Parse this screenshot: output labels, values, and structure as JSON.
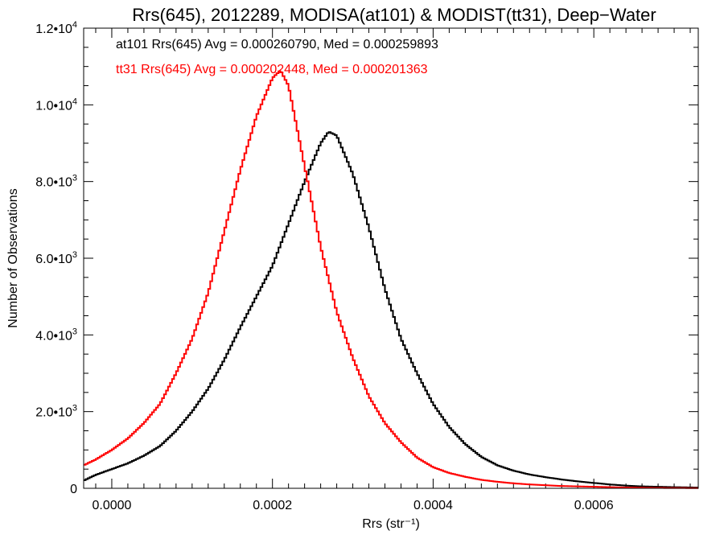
{
  "chart_data": {
    "type": "line",
    "title": "Rrs(645), 2012289, MODISA(at101) & MODIST(tt31), Deep−Water",
    "xlabel": "Rrs (str⁻¹)",
    "ylabel": "Number of Observations",
    "xlim": [
      -3.5e-05,
      0.00073
    ],
    "ylim": [
      0,
      12000
    ],
    "x_ticks": [
      {
        "value": 0.0,
        "label": "0.0000"
      },
      {
        "value": 0.0002,
        "label": "0.0002"
      },
      {
        "value": 0.0004,
        "label": "0.0004"
      },
      {
        "value": 0.0006,
        "label": "0.0006"
      }
    ],
    "y_ticks": [
      {
        "value": 0,
        "label": "0"
      },
      {
        "value": 2000,
        "label": "2.0•10",
        "exp": "3"
      },
      {
        "value": 4000,
        "label": "4.0•10",
        "exp": "3"
      },
      {
        "value": 6000,
        "label": "6.0•10",
        "exp": "3"
      },
      {
        "value": 8000,
        "label": "8.0•10",
        "exp": "3"
      },
      {
        "value": 10000,
        "label": "1.0•10",
        "exp": "4"
      },
      {
        "value": 12000,
        "label": "1.2•10",
        "exp": "4"
      }
    ],
    "annotations": [
      "at101 Rrs(645) Avg = 0.000260790, Med = 0.000259893",
      "tt31 Rrs(645) Avg = 0.000202448, Med = 0.000201363"
    ],
    "grid": false,
    "series": [
      {
        "name": "at101",
        "color": "#000000",
        "x": [
          -3.5e-05,
          -2e-05,
          0,
          2e-05,
          4e-05,
          6e-05,
          8e-05,
          0.0001,
          0.00012,
          0.00014,
          0.00016,
          0.00018,
          0.0002,
          0.00022,
          0.00024,
          0.00026,
          0.00027,
          0.00028,
          0.0003,
          0.00032,
          0.00034,
          0.00036,
          0.00038,
          0.0004,
          0.00042,
          0.00044,
          0.00046,
          0.00048,
          0.0005,
          0.00052,
          0.00054,
          0.00056,
          0.00058,
          0.0006,
          0.00062,
          0.00064,
          0.00066,
          0.00068,
          0.0007,
          0.00073
        ],
        "y": [
          200,
          350,
          500,
          650,
          850,
          1100,
          1500,
          2000,
          2600,
          3350,
          4200,
          5000,
          5800,
          6900,
          8000,
          9000,
          9300,
          9200,
          8200,
          6800,
          5200,
          3900,
          3000,
          2200,
          1600,
          1150,
          820,
          600,
          460,
          360,
          290,
          230,
          180,
          140,
          100,
          70,
          50,
          40,
          30,
          20
        ]
      },
      {
        "name": "tt31",
        "color": "#ff0000",
        "x": [
          -3.5e-05,
          -2e-05,
          0,
          2e-05,
          4e-05,
          6e-05,
          8e-05,
          0.0001,
          0.00012,
          0.00014,
          0.00016,
          0.00018,
          0.0002,
          0.00021,
          0.00022,
          0.00024,
          0.00026,
          0.00028,
          0.0003,
          0.00032,
          0.00034,
          0.00036,
          0.00038,
          0.0004,
          0.00042,
          0.00044,
          0.00046,
          0.00048,
          0.0005,
          0.00052,
          0.00054,
          0.00056,
          0.00058,
          0.0006,
          0.00062,
          0.00064,
          0.00066,
          0.00068,
          0.0007,
          0.00073
        ],
        "y": [
          600,
          750,
          1000,
          1300,
          1700,
          2200,
          3000,
          3900,
          5100,
          6700,
          8300,
          9700,
          10700,
          10900,
          10500,
          8400,
          6300,
          4600,
          3400,
          2400,
          1700,
          1200,
          800,
          550,
          400,
          300,
          220,
          170,
          130,
          100,
          80,
          60,
          50,
          40,
          30,
          20,
          15,
          10,
          8,
          5
        ]
      }
    ]
  }
}
